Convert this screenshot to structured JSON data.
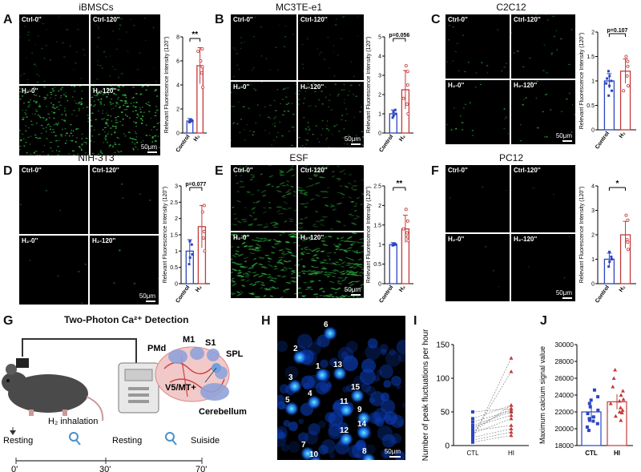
{
  "panels": {
    "A": {
      "letter": "A",
      "title": "iBMSCs",
      "labels": [
        "Ctrl-0''",
        "Ctrl-120''",
        "H₂-0''",
        "H₂-120''"
      ],
      "scale": "50μm"
    },
    "B": {
      "letter": "B",
      "title": "MC3TE-e1",
      "labels": [
        "Ctrl-0''",
        "Ctrl-120''",
        "H₂-0''",
        "H₂-120''"
      ],
      "scale": "50μm"
    },
    "C": {
      "letter": "C",
      "title": "C2C12",
      "labels": [
        "Ctrl-0''",
        "Ctrl-120''",
        "H₂-0''",
        "H₂-120''"
      ],
      "scale": "50μm"
    },
    "D": {
      "letter": "D",
      "title": "NIH-3T3",
      "labels": [
        "Ctrl-0''",
        "Ctrl-120''",
        "H₂-0''",
        "H₂-120''"
      ],
      "scale": "50μm"
    },
    "E": {
      "letter": "E",
      "title": "ESF",
      "labels": [
        "Ctrl-0''",
        "Ctrl-120''",
        "H₂-0''",
        "H₂-120''"
      ],
      "scale": "50μm"
    },
    "F": {
      "letter": "F",
      "title": "PC12",
      "labels": [
        "Ctrl-0''",
        "Ctrl-120''",
        "H₂-0''",
        "H₂-120''"
      ],
      "scale": "50μm"
    },
    "G": {
      "letter": "G",
      "title": "Two-Photon Ca²⁺ Detection",
      "regions": [
        "PMd",
        "M1",
        "S1",
        "SPL",
        "V5/MT+",
        "Cerebellum"
      ],
      "timeline": {
        "events": [
          "Resting",
          "H₂ inhalation",
          "Resting",
          "Suiside"
        ],
        "ticks": [
          "0'",
          "30'",
          "70'"
        ]
      }
    },
    "H": {
      "letter": "H",
      "scale": "50μm",
      "cells": [
        "1",
        "2",
        "3",
        "4",
        "5",
        "6",
        "7",
        "8",
        "9",
        "10",
        "11",
        "12",
        "13",
        "14",
        "15"
      ]
    },
    "I": {
      "letter": "I"
    },
    "J": {
      "letter": "J"
    }
  },
  "chart_data": [
    {
      "id": "A",
      "type": "bar",
      "categories": [
        "Control",
        "H₂"
      ],
      "values": [
        1.0,
        5.6
      ],
      "errors": [
        0.2,
        1.5
      ],
      "ylabel": "Relevant Fluorescence Intensity (120'')",
      "yticks": [
        0,
        2,
        4,
        6,
        8
      ],
      "ylim": [
        0,
        8
      ],
      "sig": "**",
      "points": [
        [
          0.9,
          1.0,
          1.1,
          1.05,
          0.95
        ],
        [
          3.8,
          5.0,
          5.5,
          6.0,
          7.0,
          6.8
        ]
      ]
    },
    {
      "id": "B",
      "type": "bar",
      "categories": [
        "Control",
        "H₂"
      ],
      "values": [
        1.0,
        2.25
      ],
      "errors": [
        0.2,
        1.0
      ],
      "ylabel": "Relevant Fluorescence Intensity (120'')",
      "yticks": [
        0,
        1,
        2,
        3,
        4,
        5
      ],
      "ylim": [
        0,
        5
      ],
      "sig": "p=0.056",
      "points": [
        [
          0.8,
          1.0,
          1.1,
          1.2,
          0.9
        ],
        [
          1.0,
          1.5,
          2.5,
          3.5,
          3.2,
          1.8
        ]
      ]
    },
    {
      "id": "C",
      "type": "bar",
      "categories": [
        "Control",
        "H₂"
      ],
      "values": [
        1.0,
        1.2
      ],
      "errors": [
        0.15,
        0.25
      ],
      "ylabel": "Relevant Fluorescence Intensity (120'')",
      "yticks": [
        0.0,
        0.5,
        1.0,
        1.5,
        2.0
      ],
      "ylim": [
        0,
        2
      ],
      "sig": "p=0.107",
      "points": [
        [
          0.7,
          0.8,
          0.9,
          1.0,
          1.1,
          1.2,
          0.95,
          1.05
        ],
        [
          0.9,
          1.1,
          1.3,
          1.5,
          1.4,
          0.8
        ]
      ]
    },
    {
      "id": "D",
      "type": "bar",
      "categories": [
        "Control",
        "H₂"
      ],
      "values": [
        1.0,
        1.75
      ],
      "errors": [
        0.35,
        0.65
      ],
      "ylabel": "Relevant Fluorescence Intensity (120'')",
      "yticks": [
        0.0,
        0.5,
        1.0,
        1.5,
        2.0,
        2.5,
        3.0
      ],
      "ylim": [
        0,
        3
      ],
      "sig": "p=0.077",
      "points": [
        [
          0.6,
          0.9,
          1.3,
          1.2,
          0.8
        ],
        [
          1.0,
          1.4,
          2.4,
          2.2,
          1.6
        ]
      ]
    },
    {
      "id": "E",
      "type": "bar",
      "categories": [
        "Control",
        "H₂"
      ],
      "values": [
        1.0,
        1.4
      ],
      "errors": [
        0.05,
        0.35
      ],
      "ylabel": "Relevant Fluorescence Intensity (120'')",
      "yticks": [
        0.0,
        0.5,
        1.0,
        1.5,
        2.0,
        2.5
      ],
      "ylim": [
        0,
        2.5
      ],
      "sig": "**",
      "points": [
        [
          0.98,
          1.0,
          1.02,
          1.01,
          0.99
        ],
        [
          1.1,
          1.3,
          1.6,
          1.9,
          1.2,
          1.4
        ]
      ]
    },
    {
      "id": "F",
      "type": "bar",
      "categories": [
        "Control",
        "H₂"
      ],
      "values": [
        1.0,
        2.0
      ],
      "errors": [
        0.25,
        0.55
      ],
      "ylabel": "Relevant Fluorescence Intensity (120'')",
      "yticks": [
        0,
        1,
        2,
        3,
        4
      ],
      "ylim": [
        0,
        4
      ],
      "sig": "*",
      "points": [
        [
          0.7,
          1.0,
          1.3,
          1.1,
          0.9
        ],
        [
          1.4,
          1.8,
          2.6,
          2.8,
          1.7
        ]
      ]
    },
    {
      "id": "I",
      "type": "line",
      "categories": [
        "CTL",
        "HI"
      ],
      "ylabel": "Number of peak fluctuations per hour",
      "yticks": [
        0,
        50,
        100,
        150
      ],
      "ylim": [
        0,
        150
      ],
      "pairs": [
        [
          10,
          130
        ],
        [
          15,
          110
        ],
        [
          20,
          60
        ],
        [
          25,
          55
        ],
        [
          30,
          50
        ],
        [
          35,
          52
        ],
        [
          18,
          40
        ],
        [
          22,
          30
        ],
        [
          12,
          25
        ],
        [
          28,
          45
        ],
        [
          40,
          60
        ],
        [
          8,
          20
        ],
        [
          5,
          15
        ],
        [
          50,
          55
        ]
      ]
    },
    {
      "id": "J",
      "type": "bar",
      "categories": [
        "CTL",
        "HI"
      ],
      "values": [
        22000,
        23200
      ],
      "errors": [
        800,
        900
      ],
      "ylabel": "Maximum calcium signal value",
      "yticks": [
        18000,
        20000,
        22000,
        24000,
        26000,
        28000,
        30000
      ],
      "ylim": [
        18000,
        30000
      ],
      "points": [
        [
          19800,
          20200,
          20600,
          21000,
          21400,
          21800,
          22200,
          22600,
          23000,
          23400,
          23800,
          24600,
          21200,
          20900
        ],
        [
          21000,
          21500,
          22000,
          22500,
          23000,
          23500,
          24000,
          24500,
          25000,
          26000,
          27000,
          22200,
          23300,
          21900
        ]
      ]
    }
  ]
}
